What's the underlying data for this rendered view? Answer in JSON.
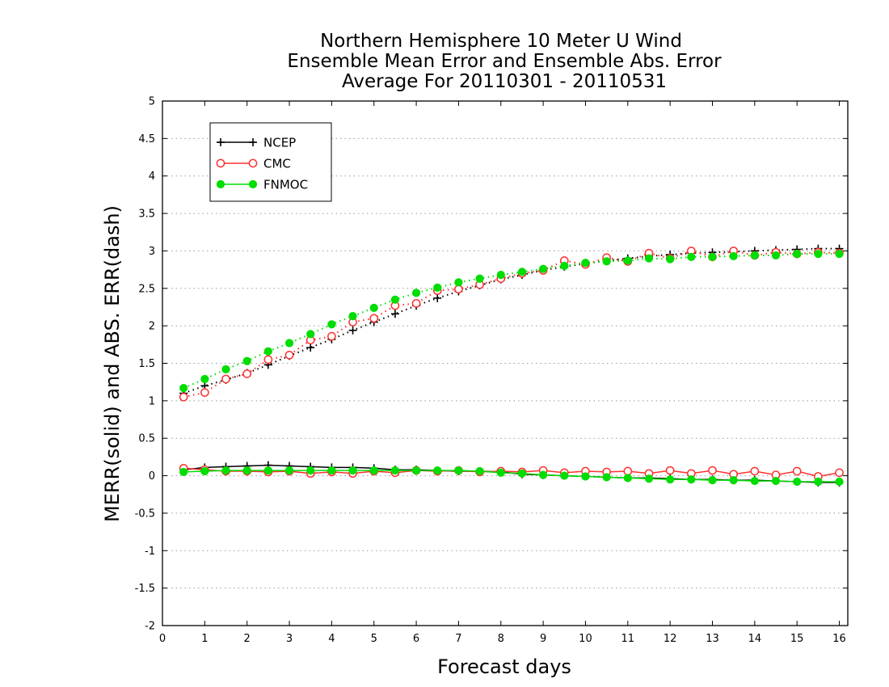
{
  "chart_data": {
    "type": "line",
    "title": [
      "Northern Hemisphere 10 Meter U Wind",
      "Ensemble Mean Error and Ensemble Abs. Error",
      "Average For 20110301 - 20110531"
    ],
    "xlabel": "Forecast days",
    "ylabel": "MERR(solid) and ABS. ERR(dash)",
    "xlim": [
      0,
      16.2
    ],
    "ylim": [
      -2,
      5
    ],
    "x_ticks": [
      0,
      1,
      2,
      3,
      4,
      5,
      6,
      7,
      8,
      9,
      10,
      11,
      12,
      13,
      14,
      15,
      16
    ],
    "x_tick_labels": [
      "0",
      "1",
      "2",
      "3",
      "4",
      "5",
      "6",
      "7",
      "8",
      "9",
      "10",
      "11",
      "12",
      "13",
      "14",
      "15",
      "16"
    ],
    "y_ticks": [
      -2,
      -1.5,
      -1,
      -0.5,
      0,
      0.5,
      1,
      1.5,
      2,
      2.5,
      3,
      3.5,
      4,
      4.5,
      5
    ],
    "y_tick_labels": [
      "-2",
      "-1.5",
      "-1",
      "-0.5",
      "0",
      "0.5",
      "1",
      "1.5",
      "2",
      "2.5",
      "3",
      "3.5",
      "4",
      "4.5",
      "5"
    ],
    "grid": "horizontal dotted",
    "legend": "top-left",
    "x": [
      0.5,
      1,
      1.5,
      2,
      2.5,
      3,
      3.5,
      4,
      4.5,
      5,
      5.5,
      6,
      6.5,
      7,
      7.5,
      8,
      8.5,
      9,
      9.5,
      10,
      10.5,
      11,
      11.5,
      12,
      12.5,
      13,
      13.5,
      14,
      14.5,
      15,
      15.5,
      16
    ],
    "series": [
      {
        "name": "NCEP",
        "color": "#000000",
        "marker": "plus",
        "mean_error": [
          0.08,
          0.11,
          0.12,
          0.13,
          0.14,
          0.13,
          0.12,
          0.11,
          0.11,
          0.1,
          0.08,
          0.08,
          0.07,
          0.06,
          0.06,
          0.05,
          0.02,
          0.01,
          0.0,
          -0.01,
          -0.02,
          -0.03,
          -0.03,
          -0.04,
          -0.05,
          -0.05,
          -0.06,
          -0.06,
          -0.07,
          -0.08,
          -0.09,
          -0.09
        ],
        "abs_error": [
          1.1,
          1.2,
          1.28,
          1.37,
          1.48,
          1.6,
          1.71,
          1.82,
          1.94,
          2.05,
          2.16,
          2.27,
          2.37,
          2.46,
          2.54,
          2.62,
          2.68,
          2.74,
          2.79,
          2.83,
          2.87,
          2.9,
          2.93,
          2.95,
          2.97,
          2.98,
          2.99,
          3.0,
          3.01,
          3.02,
          3.03,
          3.03
        ]
      },
      {
        "name": "CMC",
        "color": "#ff3030",
        "marker": "open-circle",
        "mean_error": [
          0.1,
          0.08,
          0.06,
          0.06,
          0.05,
          0.06,
          0.03,
          0.05,
          0.03,
          0.06,
          0.04,
          0.07,
          0.06,
          0.07,
          0.05,
          0.06,
          0.05,
          0.07,
          0.04,
          0.06,
          0.05,
          0.06,
          0.03,
          0.07,
          0.03,
          0.07,
          0.02,
          0.06,
          0.01,
          0.06,
          -0.01,
          0.04
        ],
        "abs_error": [
          1.05,
          1.11,
          1.29,
          1.36,
          1.55,
          1.61,
          1.81,
          1.86,
          2.05,
          2.1,
          2.27,
          2.3,
          2.47,
          2.49,
          2.55,
          2.63,
          2.7,
          2.74,
          2.87,
          2.82,
          2.91,
          2.86,
          2.97,
          2.9,
          3.0,
          2.92,
          3.0,
          2.94,
          2.98,
          2.96,
          2.98,
          2.97
        ]
      },
      {
        "name": "FNMOC",
        "color": "#00dd00",
        "marker": "filled-circle",
        "mean_error": [
          0.05,
          0.06,
          0.07,
          0.07,
          0.07,
          0.07,
          0.07,
          0.07,
          0.07,
          0.07,
          0.07,
          0.07,
          0.07,
          0.07,
          0.06,
          0.04,
          0.03,
          0.01,
          0.0,
          -0.01,
          -0.02,
          -0.03,
          -0.04,
          -0.05,
          -0.05,
          -0.06,
          -0.06,
          -0.07,
          -0.07,
          -0.08,
          -0.08,
          -0.08
        ],
        "abs_error": [
          1.17,
          1.29,
          1.42,
          1.53,
          1.66,
          1.77,
          1.89,
          2.02,
          2.13,
          2.24,
          2.35,
          2.44,
          2.51,
          2.58,
          2.63,
          2.68,
          2.72,
          2.76,
          2.8,
          2.84,
          2.86,
          2.87,
          2.9,
          2.89,
          2.92,
          2.92,
          2.93,
          2.94,
          2.94,
          2.96,
          2.96,
          2.96
        ]
      }
    ]
  }
}
